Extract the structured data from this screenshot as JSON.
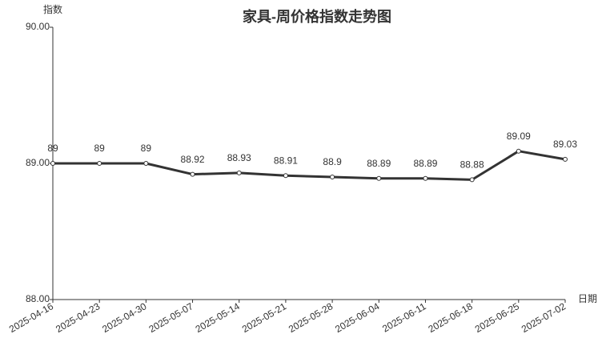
{
  "chart_data": {
    "type": "line",
    "title": "家具-周价格指数走势图",
    "y_label": "指数",
    "x_label": "日期",
    "categories": [
      "2025-04-16",
      "2025-04-23",
      "2025-04-30",
      "2025-05-07",
      "2025-05-14",
      "2025-05-21",
      "2025-05-28",
      "2025-06-04",
      "2025-06-11",
      "2025-06-18",
      "2025-06-25",
      "2025-07-02"
    ],
    "series": [
      {
        "color": "#333333",
        "values": [
          89,
          89,
          89,
          88.92,
          88.93,
          88.91,
          88.9,
          88.89,
          88.89,
          88.88,
          89.09,
          89.03
        ]
      }
    ],
    "ylim": [
      88,
      90
    ],
    "yticks": [
      {
        "value": 88,
        "label": "88.00"
      },
      {
        "value": 89,
        "label": "89.00"
      },
      {
        "value": 90,
        "label": "90.00"
      }
    ],
    "grid": false
  }
}
